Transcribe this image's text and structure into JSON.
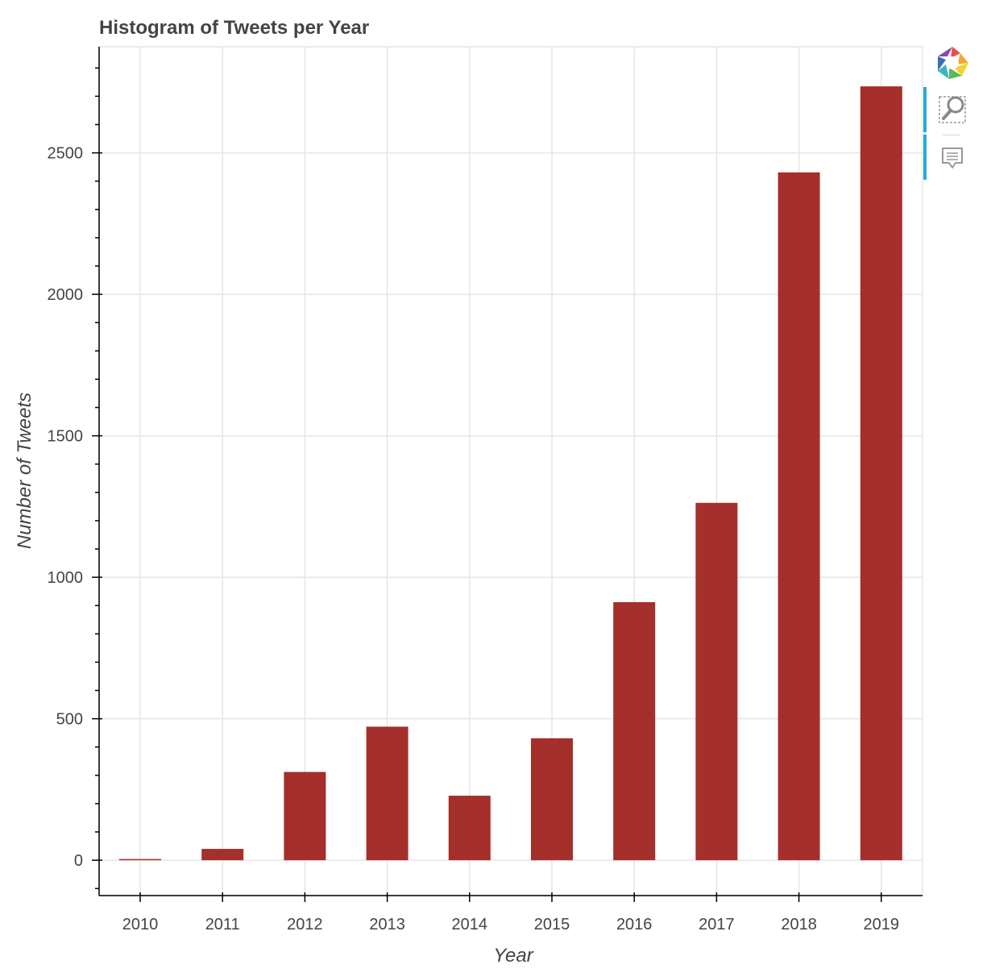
{
  "chart_data": {
    "type": "bar",
    "title": "Histogram of Tweets per Year",
    "xlabel": "Year",
    "ylabel": "Number of Tweets",
    "categories": [
      "2010",
      "2011",
      "2012",
      "2013",
      "2014",
      "2015",
      "2016",
      "2017",
      "2018",
      "2019"
    ],
    "values": [
      3,
      40,
      312,
      472,
      228,
      431,
      912,
      1263,
      2431,
      2735
    ],
    "ylim": [
      -125,
      2875
    ],
    "y_ticks": [
      0,
      500,
      1000,
      1500,
      2000,
      2500
    ],
    "y_tick_labels": [
      "0",
      "500",
      "1000",
      "1500",
      "2000",
      "2500"
    ],
    "grid": true,
    "bar_color": "#a52f2a"
  },
  "toolbar": {
    "tools": [
      {
        "name": "bokeh-logo-icon"
      },
      {
        "name": "box-zoom-icon"
      },
      {
        "name": "hover-icon"
      }
    ],
    "active_color": "#26aae1"
  }
}
